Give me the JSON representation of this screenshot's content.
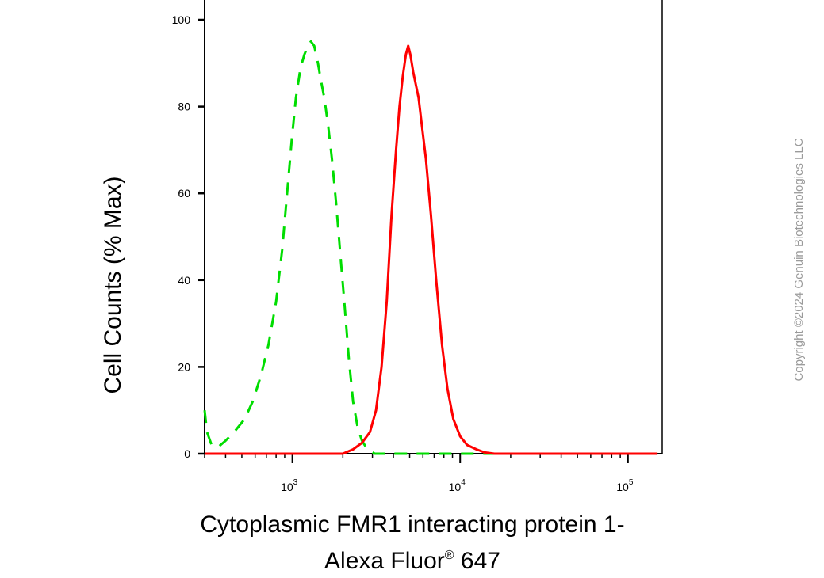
{
  "chart_data": {
    "type": "line",
    "xscale": "log",
    "xlim": [
      300,
      160000
    ],
    "ylim": [
      0,
      100
    ],
    "grid": false,
    "yticks": [
      0,
      20,
      40,
      60,
      80,
      100
    ],
    "xticks": [
      {
        "base": "10",
        "exp": "3",
        "value": 1000
      },
      {
        "base": "10",
        "exp": "4",
        "value": 10000
      },
      {
        "base": "10",
        "exp": "5",
        "value": 100000
      }
    ],
    "ylabel": "Cell Counts (% Max)",
    "xlabel_line1": "Cytoplasmic FMR1 interacting protein 1-",
    "xlabel_line2_main": "Alexa Fluor",
    "xlabel_line2_reg": "®",
    "xlabel_line2_tail": " 647",
    "series": [
      {
        "color": "#00dd00",
        "dash": "dashed",
        "points": [
          [
            300,
            10
          ],
          [
            310,
            5
          ],
          [
            330,
            2
          ],
          [
            360,
            1.5
          ],
          [
            400,
            3
          ],
          [
            450,
            5
          ],
          [
            520,
            8
          ],
          [
            580,
            12
          ],
          [
            650,
            18
          ],
          [
            720,
            25
          ],
          [
            800,
            35
          ],
          [
            870,
            47
          ],
          [
            930,
            60
          ],
          [
            990,
            72
          ],
          [
            1050,
            82
          ],
          [
            1120,
            89
          ],
          [
            1180,
            92
          ],
          [
            1240,
            94
          ],
          [
            1290,
            95
          ],
          [
            1350,
            94
          ],
          [
            1420,
            90
          ],
          [
            1480,
            86
          ],
          [
            1550,
            82
          ],
          [
            1630,
            76
          ],
          [
            1720,
            68
          ],
          [
            1820,
            58
          ],
          [
            1930,
            46
          ],
          [
            2050,
            34
          ],
          [
            2170,
            22
          ],
          [
            2300,
            12
          ],
          [
            2450,
            6
          ],
          [
            2600,
            3
          ],
          [
            2800,
            1
          ],
          [
            3100,
            0
          ],
          [
            5000,
            0
          ],
          [
            20000,
            0
          ],
          [
            150000,
            0
          ]
        ]
      },
      {
        "color": "#ff0000",
        "dash": "solid",
        "points": [
          [
            300,
            0
          ],
          [
            2000,
            0
          ],
          [
            2300,
            1
          ],
          [
            2600,
            2.5
          ],
          [
            2900,
            5
          ],
          [
            3150,
            10
          ],
          [
            3400,
            20
          ],
          [
            3650,
            35
          ],
          [
            3900,
            55
          ],
          [
            4150,
            70
          ],
          [
            4350,
            80
          ],
          [
            4550,
            87
          ],
          [
            4750,
            92
          ],
          [
            4900,
            94
          ],
          [
            5050,
            92
          ],
          [
            5250,
            88
          ],
          [
            5450,
            85
          ],
          [
            5650,
            82
          ],
          [
            5900,
            76
          ],
          [
            6250,
            68
          ],
          [
            6700,
            55
          ],
          [
            7200,
            40
          ],
          [
            7800,
            25
          ],
          [
            8400,
            15
          ],
          [
            9100,
            8
          ],
          [
            10000,
            4
          ],
          [
            11000,
            2
          ],
          [
            12500,
            1
          ],
          [
            14000,
            0.3
          ],
          [
            16000,
            0
          ],
          [
            150000,
            0
          ]
        ]
      }
    ]
  },
  "copyright": "Copyright ©2024 Genuin Biotechnologies LLC",
  "colors": {
    "axis": "#000000",
    "copyright": "#9a9a9a"
  }
}
